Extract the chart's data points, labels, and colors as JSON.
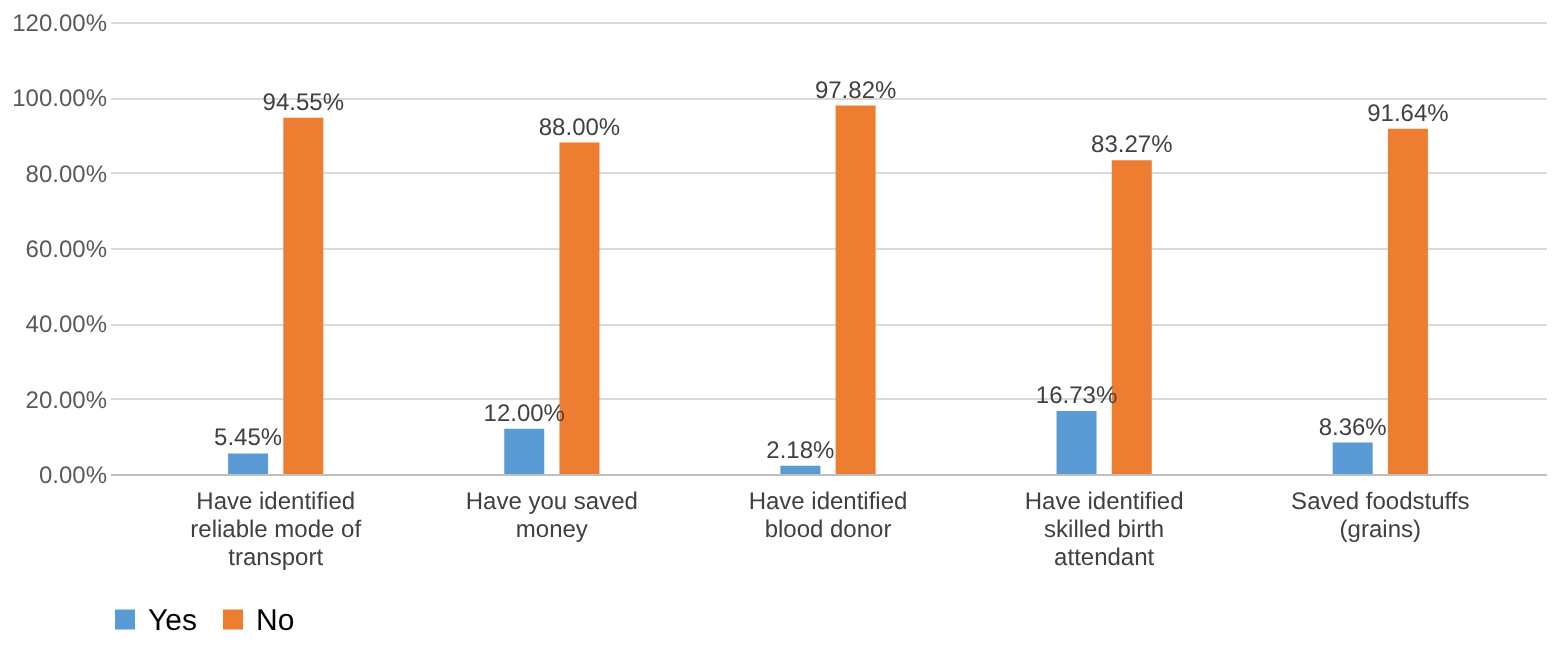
{
  "chart_data": {
    "type": "bar",
    "categories": [
      "Have identified reliable mode of transport",
      "Have you saved money",
      "Have identified blood donor",
      "Have identified skilled birth attendant",
      "Saved foodstuffs (grains)"
    ],
    "series": [
      {
        "name": "Yes",
        "color": "#5b9bd5",
        "values": [
          5.45,
          12.0,
          2.18,
          16.73,
          8.36
        ],
        "value_labels": [
          "5.45%",
          "12.00%",
          "2.18%",
          "16.73%",
          "8.36%"
        ]
      },
      {
        "name": "No",
        "color": "#ed7d31",
        "values": [
          94.55,
          88.0,
          97.82,
          83.27,
          91.64
        ],
        "value_labels": [
          "94.55%",
          "88.00%",
          "97.82%",
          "83.27%",
          "91.64%"
        ]
      }
    ],
    "ylim": [
      0,
      120
    ],
    "yticks": [
      {
        "value": 0,
        "label": "0.00%"
      },
      {
        "value": 20,
        "label": "20.00%"
      },
      {
        "value": 40,
        "label": "40.00%"
      },
      {
        "value": 60,
        "label": "60.00%"
      },
      {
        "value": 80,
        "label": "80.00%"
      },
      {
        "value": 100,
        "label": "100.00%"
      },
      {
        "value": 120,
        "label": "120.00%"
      }
    ],
    "grid": "y",
    "legend": "bottom"
  }
}
